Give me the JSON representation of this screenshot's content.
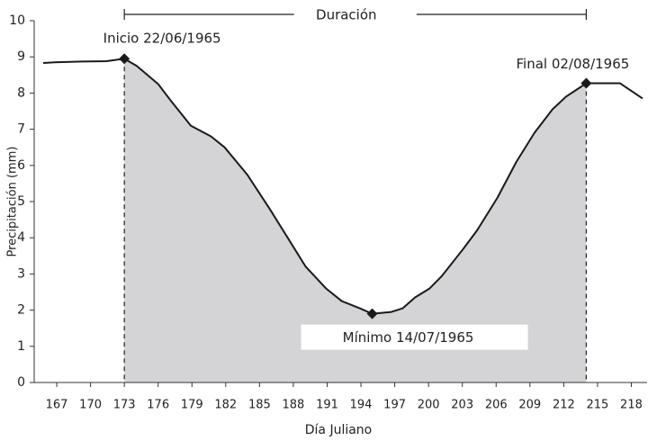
{
  "chart_data": {
    "type": "line",
    "xlabel": "Día Juliano",
    "ylabel": "Precipitación (mm)",
    "x": [
      165.8,
      166.8,
      169.2,
      171.4,
      173,
      174.1,
      176,
      177.1,
      178.9,
      180.7,
      181.9,
      183.9,
      185.9,
      187.5,
      189.1,
      190.9,
      192.3,
      193.9,
      195,
      196.7,
      197.7,
      198.8,
      200.1,
      201.2,
      203.1,
      204.3,
      206.1,
      207.8,
      209.4,
      211,
      212.2,
      214,
      215,
      217,
      219
    ],
    "values": [
      8.83,
      8.85,
      8.87,
      8.88,
      8.95,
      8.75,
      8.25,
      7.8,
      7.1,
      6.8,
      6.5,
      5.75,
      4.8,
      4.0,
      3.2,
      2.6,
      2.25,
      2.05,
      1.9,
      1.95,
      2.05,
      2.35,
      2.6,
      2.95,
      3.7,
      4.2,
      5.1,
      6.1,
      6.9,
      7.55,
      7.9,
      8.27,
      8.27,
      8.27,
      7.85
    ],
    "color": "#1a1a1a",
    "area_color": "#d4d4d6",
    "xlim": [
      165,
      219.4
    ],
    "ylim": [
      0,
      10
    ],
    "xticks": [
      167,
      170,
      173,
      176,
      179,
      182,
      185,
      188,
      191,
      194,
      197,
      200,
      203,
      206,
      209,
      212,
      215,
      218
    ],
    "yticks": [
      0,
      1,
      2,
      3,
      4,
      5,
      6,
      7,
      8,
      9,
      10
    ],
    "events": [
      {
        "label": "Inicio 22/06/1965",
        "x": 173,
        "y": 8.95
      },
      {
        "label": "Mínimo 14/07/1965",
        "x": 195,
        "y": 1.9
      },
      {
        "label": "Final 02/08/1965",
        "x": 214,
        "y": 8.27
      }
    ],
    "duration_label": "Duración"
  }
}
